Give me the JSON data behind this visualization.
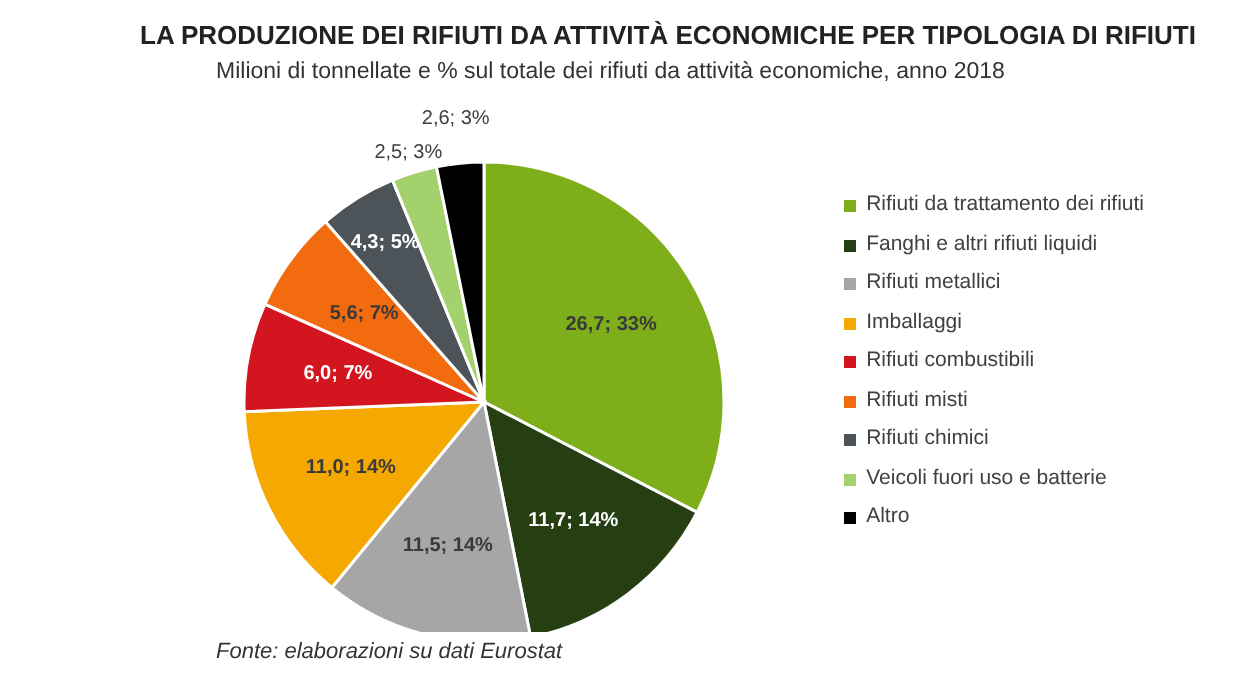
{
  "chart_data": {
    "type": "pie",
    "title": "LA PRODUZIONE DEI RIFIUTI DA ATTIVITÀ ECONOMICHE PER TIPOLOGIA DI RIFIUTI",
    "subtitle": "Milioni di tonnellate e % sul totale dei rifiuti da attività economiche, anno 2018",
    "categories": [
      "Rifiuti da trattamento dei rifiuti",
      "Fanghi e altri rifiuti liquidi",
      "Rifiuti metallici",
      "Imballaggi",
      "Rifiuti combustibili",
      "Rifiuti misti",
      "Rifiuti chimici",
      "Veicoli fuori uso e batterie",
      "Altro"
    ],
    "values": [
      26.7,
      11.7,
      11.5,
      11.0,
      6.0,
      5.6,
      4.3,
      2.5,
      2.6
    ],
    "value_labels": [
      "26,7; 33%",
      "11,7; 14%",
      "11,5; 14%",
      "11,0; 14%",
      "6,0; 7%",
      "5,6; 7%",
      "4,3; 5%",
      "2,5; 3%",
      "2,6; 3%"
    ],
    "colors": [
      "#7fae1b",
      "#263f12",
      "#a6a6a6",
      "#f5a800",
      "#d2151e",
      "#f26b0f",
      "#4d5459",
      "#a3d16b",
      "#000000"
    ],
    "legend": "right",
    "annotations": [
      "Fonte: elaborazioni su dati Eurostat"
    ]
  }
}
